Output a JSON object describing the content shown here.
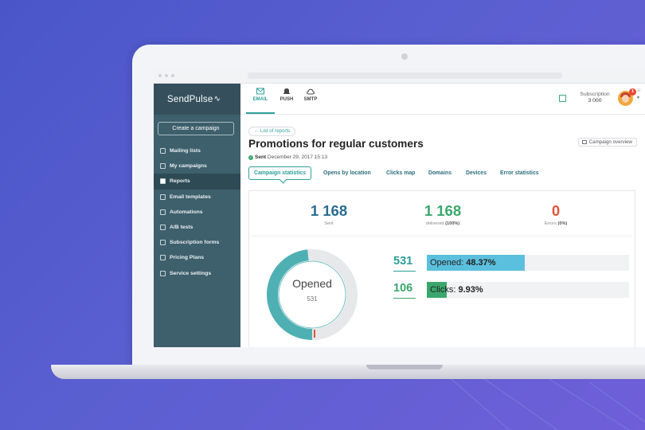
{
  "app": {
    "logo": "SendPulse"
  },
  "sidebar": {
    "create_button": "Create a campaign",
    "items": [
      {
        "label": "Mailing lists",
        "icon": "list-icon"
      },
      {
        "label": "My campaigns",
        "icon": "envelope-icon"
      },
      {
        "label": "Reports",
        "icon": "checkbox-icon",
        "active": true
      },
      {
        "label": "Email templates",
        "icon": "template-icon"
      },
      {
        "label": "Automations",
        "icon": "automation-icon"
      },
      {
        "label": "A/B tests",
        "icon": "ab-test-icon"
      },
      {
        "label": "Subscription forms",
        "icon": "form-icon"
      },
      {
        "label": "Pricing Plans",
        "icon": "pricing-icon"
      },
      {
        "label": "Service settings",
        "icon": "settings-icon"
      }
    ]
  },
  "topnav": {
    "tabs": [
      {
        "label": "EMAIL",
        "icon": "envelope-icon",
        "active": true
      },
      {
        "label": "PUSH",
        "icon": "bell-icon"
      },
      {
        "label": "SMTP",
        "icon": "cloud-icon"
      }
    ],
    "subscription_label": "Subscription",
    "subscription_value": "3 000",
    "notification_count": "1"
  },
  "report": {
    "back_link": "← List of reports",
    "title": "Promotions for regular customers",
    "overview_button": "Campaign overview",
    "sent_label": "Sent",
    "sent_date": "December 29, 2017 15:13",
    "tabs": [
      "Campaign statistics",
      "Opens by location",
      "Clicks map",
      "Domains",
      "Devices",
      "Error statistics"
    ]
  },
  "stats": {
    "sent": {
      "value": "1 168",
      "label": "Sent"
    },
    "delivered": {
      "value": "1 168",
      "label": "delivered",
      "percent": "(100%)"
    },
    "errors": {
      "value": "0",
      "label": "Errors",
      "percent": "(0%)"
    }
  },
  "donut": {
    "label": "Opened",
    "value": "531",
    "opened_fraction": 0.4837
  },
  "metrics": [
    {
      "count": "531",
      "label": "Opened:",
      "percent_text": "48.37%",
      "percent": 48.37,
      "color": "#5bc0de",
      "count_color": "#2c9f9a"
    },
    {
      "count": "106",
      "label": "Clicks:",
      "percent_text": "9.93%",
      "percent": 9.93,
      "color": "#3aa76d",
      "count_color": "#3aa76d"
    }
  ],
  "colors": {
    "accent": "#2c9f9a",
    "sidebar": "#3e5f6c",
    "donut_opened": "#4fb0b4",
    "donut_rest": "#e7e8ea"
  }
}
